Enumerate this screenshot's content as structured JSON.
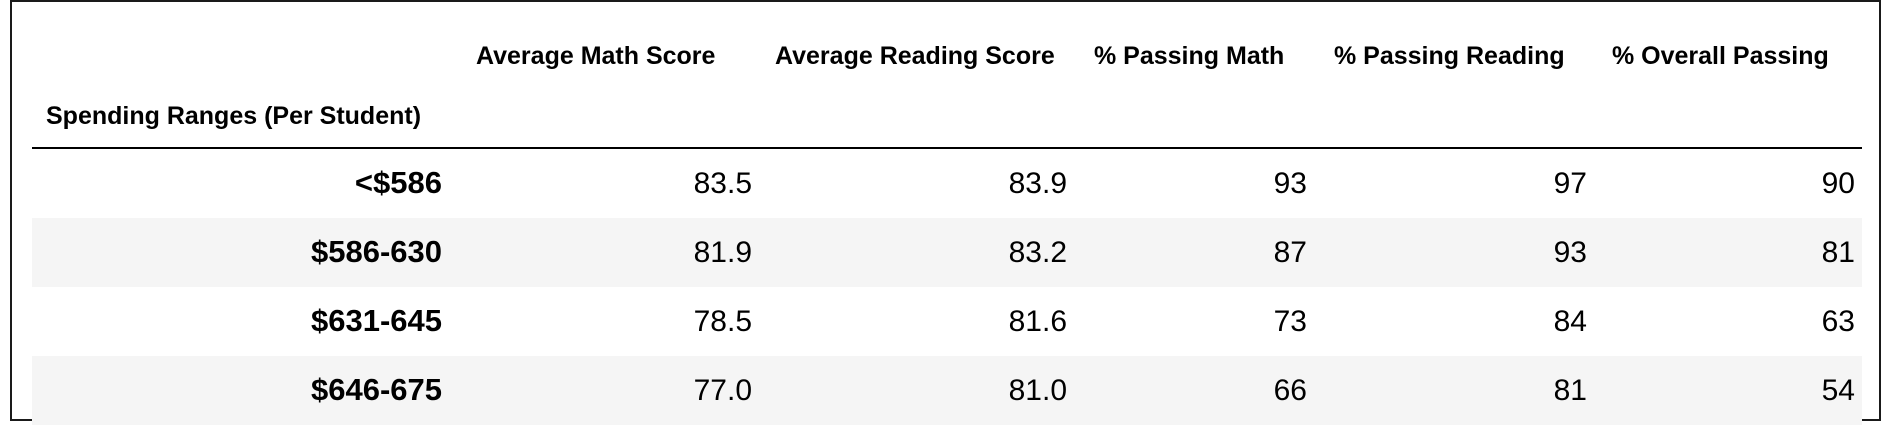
{
  "table": {
    "index_name": "Spending Ranges (Per Student)",
    "columns": [
      "Average Math Score",
      "Average Reading Score",
      "% Passing Math",
      "% Passing Reading",
      "% Overall Passing"
    ],
    "rows": [
      {
        "index": "<$586",
        "values": [
          "83.5",
          "83.9",
          "93",
          "97",
          "90"
        ]
      },
      {
        "index": "$586-630",
        "values": [
          "81.9",
          "83.2",
          "87",
          "93",
          "81"
        ]
      },
      {
        "index": "$631-645",
        "values": [
          "78.5",
          "81.6",
          "73",
          "84",
          "63"
        ]
      },
      {
        "index": "$646-675",
        "values": [
          "77.0",
          "81.0",
          "66",
          "81",
          "54"
        ]
      }
    ]
  }
}
